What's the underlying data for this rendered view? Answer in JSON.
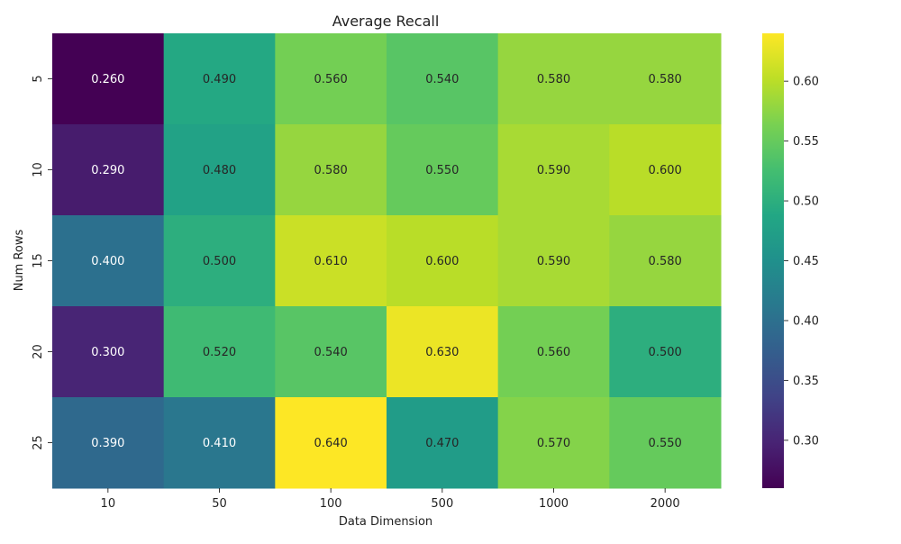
{
  "chart_data": {
    "type": "heatmap",
    "title": "Average Recall",
    "xlabel": "Data Dimension",
    "ylabel": "Num Rows",
    "x_categories": [
      "10",
      "50",
      "100",
      "500",
      "1000",
      "2000"
    ],
    "y_categories": [
      "5",
      "10",
      "15",
      "20",
      "25"
    ],
    "values": [
      [
        0.26,
        0.49,
        0.56,
        0.54,
        0.58,
        0.58
      ],
      [
        0.29,
        0.48,
        0.58,
        0.55,
        0.59,
        0.6
      ],
      [
        0.4,
        0.5,
        0.61,
        0.6,
        0.59,
        0.58
      ],
      [
        0.3,
        0.52,
        0.54,
        0.63,
        0.56,
        0.5
      ],
      [
        0.39,
        0.41,
        0.64,
        0.47,
        0.57,
        0.55
      ]
    ],
    "cell_labels": [
      [
        "0.260",
        "0.490",
        "0.560",
        "0.540",
        "0.580",
        "0.580"
      ],
      [
        "0.290",
        "0.480",
        "0.580",
        "0.550",
        "0.590",
        "0.600"
      ],
      [
        "0.400",
        "0.500",
        "0.610",
        "0.600",
        "0.590",
        "0.580"
      ],
      [
        "0.300",
        "0.520",
        "0.540",
        "0.630",
        "0.560",
        "0.500"
      ],
      [
        "0.390",
        "0.410",
        "0.640",
        "0.470",
        "0.570",
        "0.550"
      ]
    ],
    "colorscale": "viridis",
    "color_range": [
      0.26,
      0.64
    ],
    "colorbar_ticks": [
      "0.30",
      "0.35",
      "0.40",
      "0.45",
      "0.50",
      "0.55",
      "0.60"
    ],
    "colorbar_tick_values": [
      0.3,
      0.35,
      0.4,
      0.45,
      0.5,
      0.55,
      0.6
    ],
    "colorbar_placement": "right",
    "grid": false
  }
}
